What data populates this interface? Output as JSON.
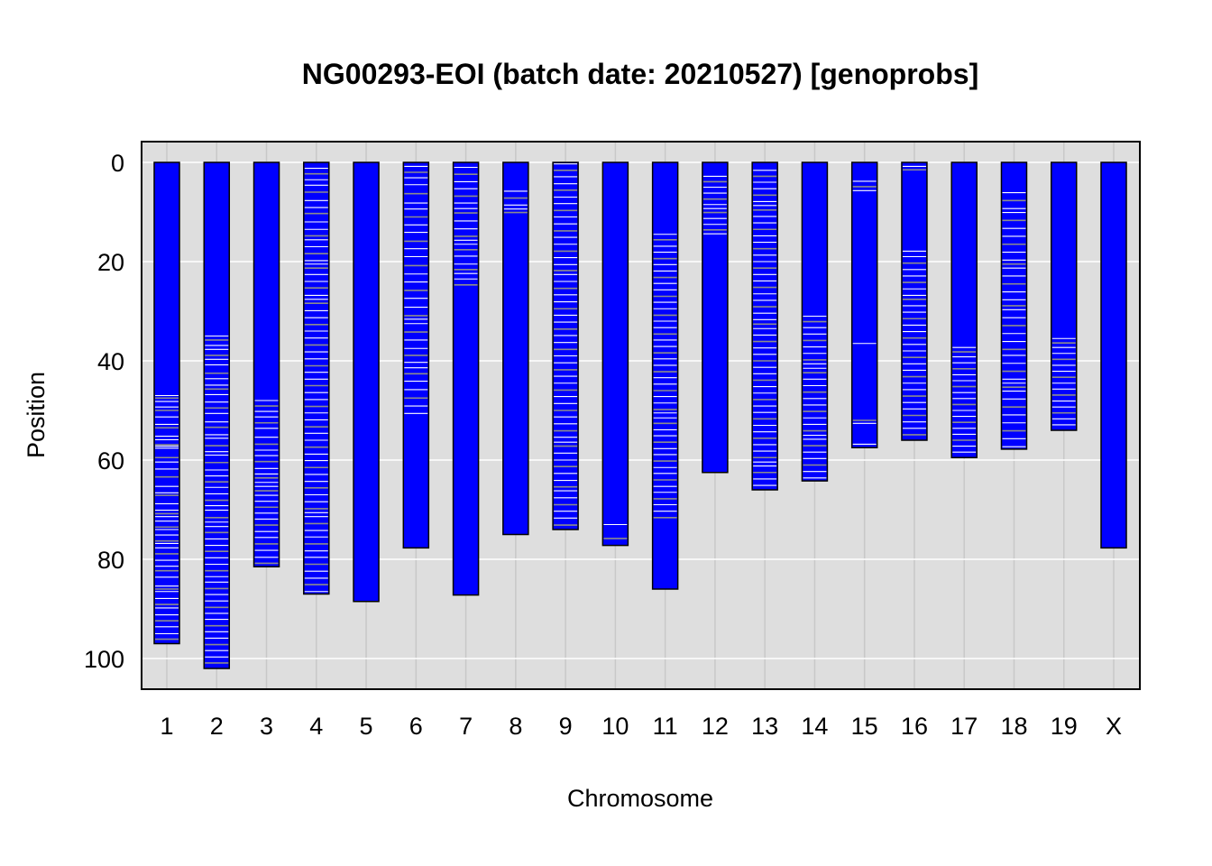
{
  "chart_data": {
    "type": "chromosome-ideogram",
    "title": "NG00293-EOI (batch date: 20210527) [genoprobs]",
    "xlabel": "Chromosome",
    "ylabel": "Position",
    "ylim": [
      0,
      105
    ],
    "y_reversed": true,
    "y_ticks": [
      0,
      20,
      40,
      60,
      80,
      100
    ],
    "grid": true,
    "colors": {
      "panel_background": "#dedede",
      "grid_line": "#ffffff",
      "chromosome_fill": "#0000ff",
      "chromosome_border": "#000000",
      "marker_white": "#ffffff",
      "marker_gray": "#8c8c8c"
    },
    "chromosomes": [
      {
        "name": "1",
        "length": 97.0,
        "markers": [
          47.0,
          47.5,
          48.2,
          49.3,
          50.0,
          51.3,
          52.8,
          53.5,
          55.2,
          55.9,
          56.9,
          57.2,
          57.6,
          59.5,
          60.4,
          61.8,
          63.4,
          65.3,
          66.6,
          67.1,
          68.8,
          70.1,
          70.8,
          71.4,
          72.3,
          73.5,
          74.0,
          75.1,
          76.3,
          76.8,
          77.7,
          78.9,
          80.2,
          81.4,
          82.3,
          83.6,
          85.4,
          86.0,
          86.5,
          87.9,
          89.1,
          89.8,
          91.2,
          92.4,
          93.6,
          95.0,
          96.1
        ]
      },
      {
        "name": "2",
        "length": 102.0,
        "markers": [
          35.0,
          35.8,
          36.9,
          37.7,
          38.9,
          39.7,
          40.8,
          42.5,
          43.6,
          44.9,
          45.7,
          46.8,
          48.3,
          49.5,
          50.6,
          52.3,
          53.4,
          54.9,
          55.6,
          57.1,
          58.3,
          59.0,
          60.5,
          62.0,
          63.2,
          64.4,
          65.5,
          66.8,
          68.1,
          69.2,
          70.1,
          71.6,
          72.5,
          73.4,
          74.6,
          75.9,
          77.2,
          78.4,
          79.7,
          81.0,
          82.3,
          83.5,
          84.6,
          85.9,
          87.1,
          88.4,
          89.7,
          90.9,
          92.1,
          93.4,
          94.6,
          95.9,
          97.2,
          98.4,
          99.7,
          100.9
        ]
      },
      {
        "name": "3",
        "length": 81.5,
        "markers": [
          48.0,
          49.1,
          50.2,
          51.3,
          52.5,
          53.6,
          55.4,
          56.8,
          58.0,
          59.1,
          60.3,
          61.7,
          62.8,
          63.6,
          64.5,
          65.3,
          66.2,
          67.1,
          68.3,
          69.5,
          70.7,
          71.9,
          73.1,
          74.4,
          75.6,
          76.9,
          78.2,
          79.6,
          80.8
        ]
      },
      {
        "name": "4",
        "length": 87.0,
        "markers": [
          1.2,
          2.3,
          3.5,
          4.6,
          6.0,
          7.7,
          9.1,
          10.3,
          12.0,
          13.5,
          14.8,
          15.6,
          17.0,
          18.4,
          19.8,
          20.5,
          21.3,
          22.6,
          24.0,
          25.3,
          26.8,
          27.6,
          28.4,
          29.9,
          31.3,
          32.7,
          34.0,
          35.4,
          36.8,
          38.2,
          39.6,
          41.0,
          42.3,
          43.7,
          45.0,
          46.4,
          47.8,
          49.2,
          50.5,
          51.9,
          53.3,
          54.6,
          56.0,
          57.4,
          58.8,
          60.1,
          61.5,
          62.9,
          64.3,
          65.6,
          67.0,
          68.4,
          69.8,
          70.6,
          71.4,
          72.8,
          74.2,
          75.5,
          76.9,
          78.3,
          79.6,
          81.0,
          82.4,
          83.8,
          85.1,
          86.5
        ]
      },
      {
        "name": "5",
        "length": 88.5,
        "markers": []
      },
      {
        "name": "6",
        "length": 77.7,
        "markers": [
          0.8,
          2.0,
          3.1,
          4.5,
          6.3,
          8.2,
          9.4,
          11.0,
          12.6,
          14.1,
          15.9,
          17.4,
          19.0,
          20.8,
          22.5,
          24.1,
          25.8,
          27.4,
          29.2,
          30.9,
          31.6,
          32.5,
          34.2,
          35.8,
          37.5,
          38.9,
          40.3,
          41.4,
          42.6,
          44.1,
          45.8,
          47.5,
          49.1,
          50.6
        ]
      },
      {
        "name": "7",
        "length": 87.2,
        "markers": [
          1.0,
          2.4,
          3.9,
          5.3,
          6.8,
          8.2,
          9.3,
          10.2,
          11.8,
          13.4,
          14.9,
          15.7,
          16.5,
          17.6,
          18.9,
          20.5,
          21.6,
          22.4,
          23.5,
          24.7
        ]
      },
      {
        "name": "8",
        "length": 75.0,
        "markers": [
          5.8,
          7.2,
          8.6,
          9.4,
          10.1
        ]
      },
      {
        "name": "9",
        "length": 74.0,
        "markers": [
          0.3,
          1.6,
          2.9,
          4.3,
          5.6,
          7.0,
          8.3,
          9.7,
          11.0,
          12.4,
          13.8,
          15.1,
          16.5,
          17.9,
          19.2,
          20.6,
          21.8,
          22.6,
          24.0,
          25.4,
          26.7,
          28.1,
          29.5,
          30.8,
          32.2,
          33.6,
          34.9,
          36.3,
          37.7,
          39.0,
          40.4,
          41.8,
          43.1,
          44.5,
          45.9,
          47.2,
          48.6,
          50.0,
          51.3,
          52.7,
          54.1,
          55.4,
          56.4,
          57.2,
          58.6,
          60.0,
          61.3,
          62.7,
          64.1,
          65.4,
          66.2,
          67.6,
          69.0,
          70.3,
          71.7,
          73.1
        ]
      },
      {
        "name": "10",
        "length": 77.2,
        "markers": [
          73.0,
          75.8
        ]
      },
      {
        "name": "11",
        "length": 86.0,
        "markers": [
          14.5,
          15.6,
          16.9,
          18.1,
          19.4,
          20.6,
          21.9,
          23.2,
          24.4,
          25.7,
          27.0,
          28.2,
          29.5,
          30.8,
          32.0,
          33.3,
          34.6,
          35.8,
          37.1,
          38.4,
          39.6,
          40.9,
          42.2,
          43.4,
          44.7,
          46.0,
          47.2,
          48.5,
          49.8,
          50.5,
          51.5,
          52.6,
          53.9,
          55.1,
          56.4,
          57.7,
          58.9,
          60.2,
          61.5,
          62.7,
          64.0,
          65.3,
          66.5,
          67.8,
          69.0,
          70.3,
          71.6
        ]
      },
      {
        "name": "12",
        "length": 62.5,
        "markers": [
          2.8,
          3.9,
          5.0,
          6.2,
          7.4,
          8.5,
          9.3,
          10.1,
          11.3,
          12.5,
          13.6,
          14.4
        ]
      },
      {
        "name": "13",
        "length": 66.0,
        "markers": [
          1.6,
          2.8,
          4.0,
          5.3,
          6.6,
          7.9,
          8.7,
          9.6,
          10.9,
          12.2,
          13.5,
          14.8,
          16.1,
          17.4,
          18.7,
          20.0,
          21.3,
          22.6,
          23.9,
          25.2,
          26.5,
          27.8,
          29.1,
          30.4,
          31.7,
          32.6,
          33.5,
          34.8,
          36.1,
          37.4,
          38.7,
          40.0,
          41.3,
          42.6,
          43.9,
          45.2,
          46.5,
          47.8,
          49.1,
          50.4,
          51.7,
          53.0,
          54.3,
          55.6,
          56.9,
          58.2,
          59.5,
          60.4,
          61.2,
          62.5,
          63.8,
          65.1
        ]
      },
      {
        "name": "14",
        "length": 64.2,
        "markers": [
          31.0,
          32.1,
          33.3,
          34.6,
          35.9,
          37.2,
          38.5,
          39.8,
          40.6,
          41.5,
          42.4,
          43.7,
          45.0,
          46.3,
          47.6,
          48.9,
          50.2,
          51.5,
          52.8,
          54.1,
          55.0,
          55.8,
          57.1,
          58.4,
          59.7,
          61.0,
          62.3,
          63.6
        ]
      },
      {
        "name": "15",
        "length": 57.5,
        "markers": [
          3.8,
          4.9,
          5.7,
          36.5,
          52.0,
          52.6,
          56.8
        ]
      },
      {
        "name": "16",
        "length": 56.0,
        "markers": [
          0.8,
          1.5,
          17.9,
          19.0,
          20.3,
          21.6,
          22.9,
          24.2,
          25.5,
          26.8,
          27.6,
          28.9,
          30.2,
          31.5,
          32.8,
          34.1,
          35.4,
          36.7,
          38.0,
          39.3,
          40.6,
          41.9,
          43.2,
          44.5,
          45.8,
          47.1,
          48.4,
          49.7,
          51.0,
          52.3,
          53.6,
          54.9
        ]
      },
      {
        "name": "17",
        "length": 59.5,
        "markers": [
          37.3,
          38.2,
          39.2,
          40.4,
          41.6,
          42.8,
          44.0,
          45.2,
          46.4,
          47.6,
          48.8,
          50.0,
          51.2,
          52.4,
          53.6,
          54.8,
          56.0,
          57.2,
          58.4
        ]
      },
      {
        "name": "18",
        "length": 57.8,
        "markers": [
          6.1,
          7.7,
          9.3,
          10.1,
          11.7,
          13.3,
          14.9,
          16.5,
          18.1,
          19.7,
          20.5,
          21.3,
          22.9,
          24.5,
          26.1,
          27.7,
          28.9,
          29.7,
          31.3,
          32.9,
          34.5,
          36.1,
          37.7,
          38.9,
          40.5,
          42.1,
          43.7,
          44.5,
          45.3,
          46.1,
          47.7,
          49.3,
          50.9,
          52.5,
          54.1,
          55.7,
          57.3
        ]
      },
      {
        "name": "19",
        "length": 54.0,
        "markers": [
          35.5,
          36.4,
          37.3,
          38.5,
          39.7,
          40.9,
          42.1,
          43.3,
          44.5,
          45.7,
          46.9,
          48.1,
          49.3,
          50.5,
          51.7,
          52.9
        ]
      },
      {
        "name": "X",
        "length": 77.7,
        "markers": []
      }
    ]
  }
}
